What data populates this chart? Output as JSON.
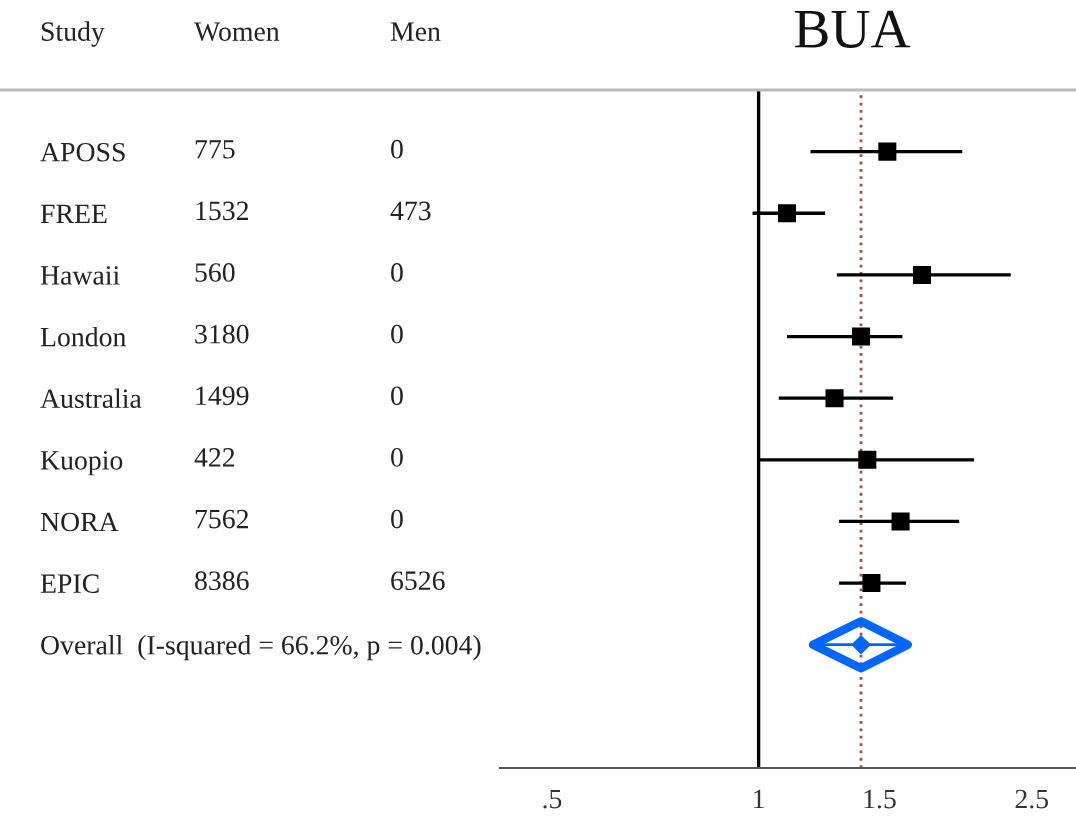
{
  "chart_data": {
    "type": "scatter",
    "title": "BUA",
    "ylabel": "Study",
    "orientation": "horizontal",
    "log": "x",
    "marker": "square",
    "grid": false,
    "legend": false,
    "categories": [
      "APOSS",
      "FREE",
      "Hawaii",
      "London",
      "Australia",
      "Kuopio",
      "NORA",
      "EPIC",
      "Overall  (I-squared = 66.2%, p = 0.004)"
    ],
    "series": [
      {
        "color": "#000000",
        "values": [
          1.54,
          1.1,
          1.73,
          1.41,
          1.29,
          1.44,
          1.61,
          1.46,
          null
        ],
        "errors": [
          [
            1.19,
            1.98
          ],
          [
            0.98,
            1.25
          ],
          [
            1.3,
            2.33
          ],
          [
            1.1,
            1.62
          ],
          [
            1.07,
            1.57
          ],
          [
            1.0,
            2.06
          ],
          [
            1.31,
            1.96
          ],
          [
            1.31,
            1.64
          ],
          null
        ]
      },
      {
        "marker": "diamond",
        "color": "#0066ff",
        "values": [
          null,
          null,
          null,
          null,
          null,
          null,
          null,
          null,
          1.41
        ],
        "errors": [
          null,
          null,
          null,
          null,
          null,
          null,
          null,
          null,
          [
            1.2,
            1.65
          ]
        ]
      }
    ],
    "xlim": [
      0.42,
      2.9
    ],
    "xticks": [
      {
        "value": 0.5,
        "label": ".5"
      },
      1,
      1.5,
      2.5
    ],
    "ref_lines": [
      {
        "axis": "x",
        "value": 1,
        "color": "#000000",
        "line_style": "solid"
      },
      {
        "axis": "x",
        "value": 1.41,
        "color": "#a05050",
        "line_style": "dotted"
      }
    ],
    "annotations": [
      "Women",
      "Men",
      "775",
      "0",
      "1532",
      "473",
      "560",
      "0",
      "3180",
      "0",
      "1499",
      "0",
      "422",
      "0",
      "7562",
      "0",
      "8386",
      "6526"
    ]
  }
}
